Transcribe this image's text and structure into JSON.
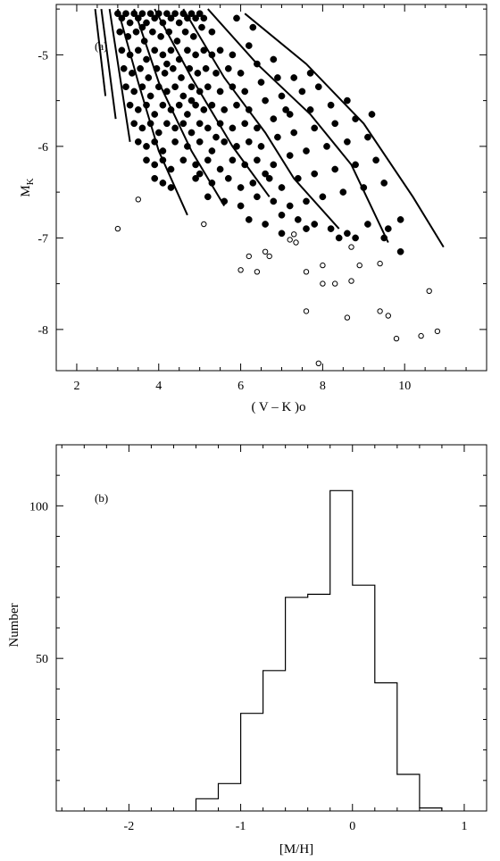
{
  "chart_data": [
    {
      "type": "scatter",
      "panel_label": "(a)",
      "xlabel": "( V – K )o",
      "ylabel": "M",
      "ylabel_sub": "K",
      "xlim": [
        1.5,
        12.0
      ],
      "ylim": [
        -4.45,
        -8.45
      ],
      "x_ticks": [
        "2",
        "4",
        "6",
        "8",
        "10"
      ],
      "y_ticks": [
        "-5",
        "-6",
        "-7",
        "-8"
      ],
      "x_tick_values": [
        2,
        4,
        6,
        8,
        10
      ],
      "y_tick_values": [
        -5,
        -6,
        -7,
        -8
      ],
      "grid": false,
      "series": [
        {
          "marker": "filled-circle",
          "points": [
            [
              3.0,
              -4.55
            ],
            [
              3.1,
              -4.6
            ],
            [
              3.2,
              -4.55
            ],
            [
              3.3,
              -4.65
            ],
            [
              3.4,
              -4.55
            ],
            [
              3.5,
              -4.6
            ],
            [
              3.6,
              -4.55
            ],
            [
              3.7,
              -4.65
            ],
            [
              3.8,
              -4.55
            ],
            [
              3.9,
              -4.6
            ],
            [
              4.0,
              -4.55
            ],
            [
              4.1,
              -4.65
            ],
            [
              4.2,
              -4.55
            ],
            [
              4.3,
              -4.6
            ],
            [
              4.4,
              -4.55
            ],
            [
              4.5,
              -4.65
            ],
            [
              4.6,
              -4.55
            ],
            [
              4.7,
              -4.6
            ],
            [
              4.8,
              -4.55
            ],
            [
              4.9,
              -4.6
            ],
            [
              5.0,
              -4.55
            ],
            [
              5.1,
              -4.6
            ],
            [
              3.05,
              -4.75
            ],
            [
              3.25,
              -4.8
            ],
            [
              3.45,
              -4.75
            ],
            [
              3.65,
              -4.85
            ],
            [
              3.85,
              -4.75
            ],
            [
              4.05,
              -4.8
            ],
            [
              4.25,
              -4.75
            ],
            [
              4.45,
              -4.85
            ],
            [
              4.65,
              -4.75
            ],
            [
              4.85,
              -4.8
            ],
            [
              5.05,
              -4.7
            ],
            [
              5.3,
              -4.75
            ],
            [
              3.1,
              -4.95
            ],
            [
              3.3,
              -5.0
            ],
            [
              3.5,
              -4.95
            ],
            [
              3.7,
              -5.05
            ],
            [
              3.9,
              -4.95
            ],
            [
              4.1,
              -5.0
            ],
            [
              4.3,
              -4.95
            ],
            [
              4.5,
              -5.05
            ],
            [
              4.7,
              -4.95
            ],
            [
              4.9,
              -5.0
            ],
            [
              5.1,
              -4.95
            ],
            [
              5.3,
              -5.0
            ],
            [
              5.5,
              -4.95
            ],
            [
              5.8,
              -5.0
            ],
            [
              6.2,
              -4.9
            ],
            [
              3.15,
              -5.15
            ],
            [
              3.35,
              -5.2
            ],
            [
              3.55,
              -5.15
            ],
            [
              3.75,
              -5.25
            ],
            [
              3.95,
              -5.15
            ],
            [
              4.15,
              -5.2
            ],
            [
              4.35,
              -5.15
            ],
            [
              4.55,
              -5.25
            ],
            [
              4.75,
              -5.15
            ],
            [
              4.95,
              -5.2
            ],
            [
              5.15,
              -5.15
            ],
            [
              5.4,
              -5.2
            ],
            [
              5.7,
              -5.15
            ],
            [
              6.0,
              -5.2
            ],
            [
              6.4,
              -5.1
            ],
            [
              6.8,
              -5.05
            ],
            [
              3.2,
              -5.35
            ],
            [
              3.4,
              -5.4
            ],
            [
              3.6,
              -5.35
            ],
            [
              3.8,
              -5.45
            ],
            [
              4.0,
              -5.35
            ],
            [
              4.2,
              -5.4
            ],
            [
              4.4,
              -5.35
            ],
            [
              4.6,
              -5.45
            ],
            [
              4.8,
              -5.35
            ],
            [
              5.0,
              -5.4
            ],
            [
              5.2,
              -5.35
            ],
            [
              5.5,
              -5.4
            ],
            [
              5.8,
              -5.35
            ],
            [
              6.1,
              -5.4
            ],
            [
              6.5,
              -5.3
            ],
            [
              6.9,
              -5.25
            ],
            [
              7.3,
              -5.25
            ],
            [
              3.3,
              -5.55
            ],
            [
              3.5,
              -5.6
            ],
            [
              3.7,
              -5.55
            ],
            [
              3.9,
              -5.65
            ],
            [
              4.1,
              -5.55
            ],
            [
              4.3,
              -5.6
            ],
            [
              4.5,
              -5.55
            ],
            [
              4.7,
              -5.65
            ],
            [
              4.9,
              -5.55
            ],
            [
              5.1,
              -5.6
            ],
            [
              5.3,
              -5.55
            ],
            [
              5.6,
              -5.6
            ],
            [
              5.9,
              -5.55
            ],
            [
              6.2,
              -5.6
            ],
            [
              6.6,
              -5.5
            ],
            [
              7.0,
              -5.45
            ],
            [
              7.5,
              -5.4
            ],
            [
              7.9,
              -5.35
            ],
            [
              3.4,
              -5.75
            ],
            [
              3.6,
              -5.8
            ],
            [
              3.8,
              -5.75
            ],
            [
              4.0,
              -5.85
            ],
            [
              4.2,
              -5.75
            ],
            [
              4.4,
              -5.8
            ],
            [
              4.6,
              -5.75
            ],
            [
              4.8,
              -5.85
            ],
            [
              5.0,
              -5.75
            ],
            [
              5.2,
              -5.8
            ],
            [
              5.5,
              -5.75
            ],
            [
              5.8,
              -5.8
            ],
            [
              6.1,
              -5.75
            ],
            [
              6.4,
              -5.8
            ],
            [
              6.8,
              -5.7
            ],
            [
              7.2,
              -5.65
            ],
            [
              7.7,
              -5.6
            ],
            [
              8.2,
              -5.55
            ],
            [
              8.6,
              -5.5
            ],
            [
              3.5,
              -5.95
            ],
            [
              3.7,
              -6.0
            ],
            [
              3.9,
              -5.95
            ],
            [
              4.1,
              -6.05
            ],
            [
              4.4,
              -5.95
            ],
            [
              4.7,
              -6.0
            ],
            [
              5.0,
              -5.95
            ],
            [
              5.3,
              -6.05
            ],
            [
              5.6,
              -5.95
            ],
            [
              5.9,
              -6.0
            ],
            [
              6.2,
              -5.95
            ],
            [
              6.5,
              -6.0
            ],
            [
              6.9,
              -5.9
            ],
            [
              7.3,
              -5.85
            ],
            [
              7.8,
              -5.8
            ],
            [
              8.3,
              -5.75
            ],
            [
              8.8,
              -5.7
            ],
            [
              9.2,
              -5.65
            ],
            [
              3.7,
              -6.15
            ],
            [
              3.9,
              -6.2
            ],
            [
              4.1,
              -6.15
            ],
            [
              4.3,
              -6.25
            ],
            [
              4.6,
              -6.15
            ],
            [
              4.9,
              -6.2
            ],
            [
              5.2,
              -6.15
            ],
            [
              5.5,
              -6.25
            ],
            [
              5.8,
              -6.15
            ],
            [
              6.1,
              -6.2
            ],
            [
              6.4,
              -6.15
            ],
            [
              6.8,
              -6.2
            ],
            [
              7.2,
              -6.1
            ],
            [
              7.6,
              -6.05
            ],
            [
              8.1,
              -6.0
            ],
            [
              8.6,
              -5.95
            ],
            [
              9.1,
              -5.9
            ],
            [
              3.9,
              -6.35
            ],
            [
              4.1,
              -6.4
            ],
            [
              4.3,
              -6.45
            ],
            [
              4.9,
              -6.35
            ],
            [
              5.3,
              -6.4
            ],
            [
              5.7,
              -6.35
            ],
            [
              6.0,
              -6.45
            ],
            [
              6.3,
              -6.4
            ],
            [
              6.7,
              -6.35
            ],
            [
              7.0,
              -6.45
            ],
            [
              7.4,
              -6.35
            ],
            [
              7.8,
              -6.3
            ],
            [
              8.3,
              -6.25
            ],
            [
              8.8,
              -6.2
            ],
            [
              9.3,
              -6.15
            ],
            [
              5.2,
              -6.55
            ],
            [
              5.6,
              -6.6
            ],
            [
              6.0,
              -6.65
            ],
            [
              6.4,
              -6.55
            ],
            [
              6.8,
              -6.6
            ],
            [
              7.2,
              -6.65
            ],
            [
              7.6,
              -6.6
            ],
            [
              8.0,
              -6.55
            ],
            [
              8.5,
              -6.5
            ],
            [
              9.0,
              -6.45
            ],
            [
              9.5,
              -6.4
            ],
            [
              6.2,
              -6.8
            ],
            [
              6.6,
              -6.85
            ],
            [
              7.0,
              -6.75
            ],
            [
              7.4,
              -6.8
            ],
            [
              7.8,
              -6.85
            ],
            [
              8.2,
              -6.9
            ],
            [
              8.6,
              -6.95
            ],
            [
              9.1,
              -6.85
            ],
            [
              9.6,
              -6.9
            ],
            [
              9.9,
              -6.8
            ],
            [
              7.0,
              -6.95
            ],
            [
              7.6,
              -6.9
            ],
            [
              8.4,
              -7.0
            ],
            [
              8.8,
              -7.0
            ],
            [
              9.5,
              -7.0
            ],
            [
              9.9,
              -7.15
            ],
            [
              3.6,
              -4.7
            ],
            [
              4.2,
              -5.1
            ],
            [
              4.8,
              -5.5
            ],
            [
              5.4,
              -5.9
            ],
            [
              5.0,
              -6.3
            ],
            [
              6.6,
              -6.3
            ],
            [
              7.1,
              -5.6
            ],
            [
              7.7,
              -5.2
            ],
            [
              6.3,
              -4.7
            ],
            [
              5.9,
              -4.6
            ]
          ]
        },
        {
          "marker": "open-circle",
          "points": [
            [
              3.0,
              -6.9
            ],
            [
              3.5,
              -6.58
            ],
            [
              5.1,
              -6.85
            ],
            [
              6.0,
              -7.35
            ],
            [
              6.2,
              -7.2
            ],
            [
              6.4,
              -7.37
            ],
            [
              6.6,
              -7.15
            ],
            [
              6.7,
              -7.2
            ],
            [
              7.2,
              -7.02
            ],
            [
              7.3,
              -6.96
            ],
            [
              7.35,
              -7.05
            ],
            [
              7.6,
              -7.8
            ],
            [
              7.6,
              -7.37
            ],
            [
              7.9,
              -8.37
            ],
            [
              8.0,
              -7.5
            ],
            [
              8.0,
              -7.3
            ],
            [
              8.3,
              -7.5
            ],
            [
              8.6,
              -7.87
            ],
            [
              8.7,
              -7.47
            ],
            [
              8.7,
              -7.1
            ],
            [
              8.9,
              -7.3
            ],
            [
              9.4,
              -7.8
            ],
            [
              9.4,
              -7.28
            ],
            [
              9.6,
              -7.85
            ],
            [
              9.8,
              -8.1
            ],
            [
              10.4,
              -8.07
            ],
            [
              10.6,
              -7.58
            ],
            [
              10.8,
              -8.02
            ]
          ]
        }
      ],
      "isochrones": [
        [
          [
            2.45,
            -4.5
          ],
          [
            2.7,
            -5.45
          ]
        ],
        [
          [
            2.6,
            -4.5
          ],
          [
            2.95,
            -5.7
          ]
        ],
        [
          [
            2.8,
            -4.5
          ],
          [
            3.3,
            -5.95
          ]
        ],
        [
          [
            3.0,
            -4.5
          ],
          [
            3.5,
            -5.3
          ],
          [
            4.0,
            -6.05
          ],
          [
            4.7,
            -6.75
          ]
        ],
        [
          [
            3.4,
            -4.5
          ],
          [
            4.0,
            -5.3
          ],
          [
            4.8,
            -6.05
          ],
          [
            5.6,
            -6.65
          ]
        ],
        [
          [
            3.9,
            -4.5
          ],
          [
            4.8,
            -5.25
          ],
          [
            5.8,
            -6.0
          ],
          [
            6.7,
            -6.55
          ]
        ],
        [
          [
            4.6,
            -4.5
          ],
          [
            5.6,
            -5.25
          ],
          [
            6.6,
            -5.85
          ],
          [
            7.3,
            -6.35
          ],
          [
            8.4,
            -6.9
          ]
        ],
        [
          [
            5.2,
            -4.5
          ],
          [
            6.4,
            -5.1
          ],
          [
            7.7,
            -5.65
          ],
          [
            8.7,
            -6.2
          ],
          [
            9.6,
            -7.05
          ]
        ],
        [
          [
            6.1,
            -4.55
          ],
          [
            7.6,
            -5.1
          ],
          [
            9.0,
            -5.75
          ],
          [
            10.2,
            -6.55
          ],
          [
            10.95,
            -7.1
          ]
        ]
      ]
    },
    {
      "type": "bar",
      "subtype": "step-histogram",
      "panel_label": "(b)",
      "xlabel": "[M/H]",
      "ylabel": "Number",
      "xlim": [
        -2.65,
        1.2
      ],
      "ylim": [
        0,
        120
      ],
      "x_ticks": [
        "-2",
        "-1",
        "0",
        "1"
      ],
      "y_ticks": [
        "50",
        "100"
      ],
      "x_tick_values": [
        -2,
        -1,
        0,
        1
      ],
      "y_tick_values": [
        50,
        100
      ],
      "grid": false,
      "bin_edges": [
        -1.4,
        -1.2,
        -1.0,
        -0.8,
        -0.6,
        -0.4,
        -0.2,
        0.0,
        0.2,
        0.4,
        0.6,
        0.8
      ],
      "values": [
        4,
        9,
        32,
        46,
        70,
        71,
        105,
        74,
        42,
        12,
        1
      ]
    }
  ]
}
